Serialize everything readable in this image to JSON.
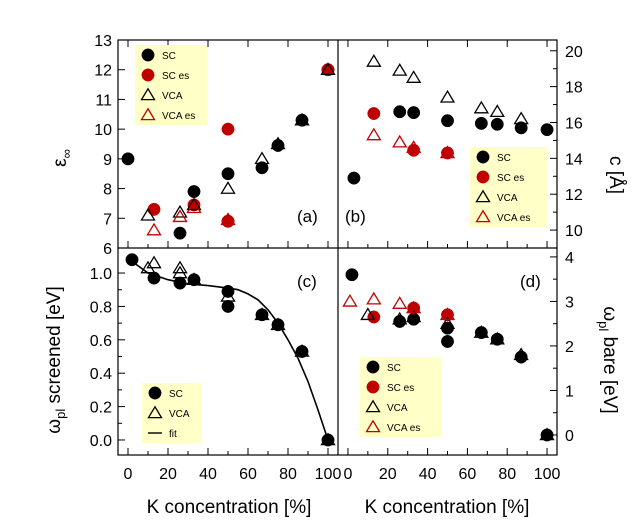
{
  "chart_data": [
    {
      "panel": "(a)",
      "type": "scatter",
      "ylabel": "ε∞",
      "xlim": [
        -5,
        105
      ],
      "ylim": [
        6,
        13
      ],
      "yticks": [
        "6",
        "7",
        "8",
        "9",
        "10",
        "11",
        "12",
        "13"
      ],
      "legend": [
        "SC",
        "SC es",
        "VCA",
        "VCA es"
      ],
      "series": [
        {
          "name": "SC",
          "x": [
            0,
            26,
            33,
            50,
            50,
            67,
            75,
            87,
            100
          ],
          "y": [
            9.0,
            6.5,
            7.9,
            8.5,
            6.9,
            8.7,
            9.45,
            10.3,
            12.0
          ]
        },
        {
          "name": "SC es",
          "x": [
            13,
            33,
            50,
            50,
            100
          ],
          "y": [
            7.3,
            7.45,
            10.0,
            6.9,
            12.0
          ]
        },
        {
          "name": "VCA",
          "x": [
            10,
            26,
            33,
            50,
            67,
            75,
            87,
            100
          ],
          "y": [
            7.1,
            7.2,
            7.45,
            8.0,
            9.0,
            9.5,
            10.3,
            12.0
          ]
        },
        {
          "name": "VCA es",
          "x": [
            13,
            26,
            33,
            50
          ],
          "y": [
            6.6,
            7.05,
            7.35,
            6.95
          ]
        }
      ]
    },
    {
      "panel": "(b)",
      "type": "scatter",
      "ylabel": "c [Å]",
      "xlim": [
        -5,
        105
      ],
      "ylim": [
        9,
        20.6
      ],
      "yticks": [
        "10",
        "12",
        "14",
        "16",
        "18",
        "20"
      ],
      "legend": [
        "SC",
        "SC es",
        "VCA",
        "VCA es"
      ],
      "series": [
        {
          "name": "SC",
          "x": [
            3,
            26,
            33,
            50,
            67,
            75,
            87,
            100
          ],
          "y": [
            12.9,
            16.6,
            16.55,
            16.1,
            15.95,
            15.9,
            15.7,
            15.6
          ]
        },
        {
          "name": "SC es",
          "x": [
            13,
            33,
            50
          ],
          "y": [
            16.5,
            14.45,
            14.3
          ]
        },
        {
          "name": "VCA",
          "x": [
            13,
            26,
            33,
            50,
            67,
            75,
            87
          ],
          "y": [
            19.4,
            18.9,
            18.5,
            17.4,
            16.8,
            16.6,
            16.2
          ]
        },
        {
          "name": "VCA es",
          "x": [
            13,
            26,
            33,
            50
          ],
          "y": [
            15.3,
            14.9,
            14.6,
            14.3
          ]
        }
      ]
    },
    {
      "panel": "(c)",
      "type": "scatter",
      "ylabel": "ωpl screened [eV]",
      "xlabel": "K concentration [%]",
      "xlim": [
        -5,
        105
      ],
      "ylim": [
        -0.09,
        1.15
      ],
      "xticks": [
        "0",
        "20",
        "40",
        "60",
        "80",
        "100"
      ],
      "yticks": [
        "0.0",
        "0.2",
        "0.4",
        "0.6",
        "0.8",
        "1.0"
      ],
      "legend": [
        "SC",
        "VCA",
        "fit"
      ],
      "series": [
        {
          "name": "SC",
          "x": [
            2,
            13,
            26,
            33,
            50,
            50,
            67,
            75,
            87,
            100
          ],
          "y": [
            1.08,
            0.97,
            0.94,
            0.96,
            0.89,
            0.8,
            0.75,
            0.69,
            0.53,
            0.0
          ]
        },
        {
          "name": "VCA",
          "x": [
            10,
            13,
            26,
            26,
            33,
            50,
            67,
            75,
            87,
            100
          ],
          "y": [
            1.03,
            1.06,
            1.03,
            1.0,
            0.96,
            0.86,
            0.75,
            0.69,
            0.53,
            0.0
          ]
        },
        {
          "name": "fit",
          "x": [
            2,
            10,
            20,
            30,
            40,
            50,
            55,
            60,
            65,
            70,
            75,
            80,
            85,
            90,
            95,
            100
          ],
          "y": [
            1.07,
            1.0,
            0.96,
            0.935,
            0.925,
            0.91,
            0.9,
            0.875,
            0.84,
            0.78,
            0.7,
            0.6,
            0.49,
            0.35,
            0.18,
            0.0
          ]
        }
      ]
    },
    {
      "panel": "(d)",
      "type": "scatter",
      "ylabel": "ωpl bare [eV]",
      "xlabel": "K concentration [%]",
      "xlim": [
        -5,
        105
      ],
      "ylim": [
        -0.45,
        4.2
      ],
      "xticks": [
        "0",
        "20",
        "40",
        "60",
        "80",
        "100"
      ],
      "yticks": [
        "0",
        "1",
        "2",
        "3",
        "4"
      ],
      "legend": [
        "SC",
        "SC es",
        "VCA",
        "VCA es"
      ],
      "series": [
        {
          "name": "SC",
          "x": [
            2,
            26,
            33,
            50,
            50,
            67,
            75,
            87,
            100
          ],
          "y": [
            3.6,
            2.55,
            2.6,
            2.4,
            2.1,
            2.3,
            2.15,
            1.75,
            0.0
          ]
        },
        {
          "name": "SC es",
          "x": [
            13,
            33,
            50
          ],
          "y": [
            2.65,
            2.85,
            2.7
          ]
        },
        {
          "name": "VCA",
          "x": [
            10,
            26,
            33,
            50,
            67,
            75,
            87,
            100
          ],
          "y": [
            2.7,
            2.6,
            2.65,
            2.5,
            2.3,
            2.15,
            1.8,
            0.0
          ]
        },
        {
          "name": "VCA es",
          "x": [
            1,
            13,
            26,
            33,
            50
          ],
          "y": [
            3.0,
            3.05,
            2.95,
            2.85,
            2.7
          ]
        }
      ]
    }
  ]
}
